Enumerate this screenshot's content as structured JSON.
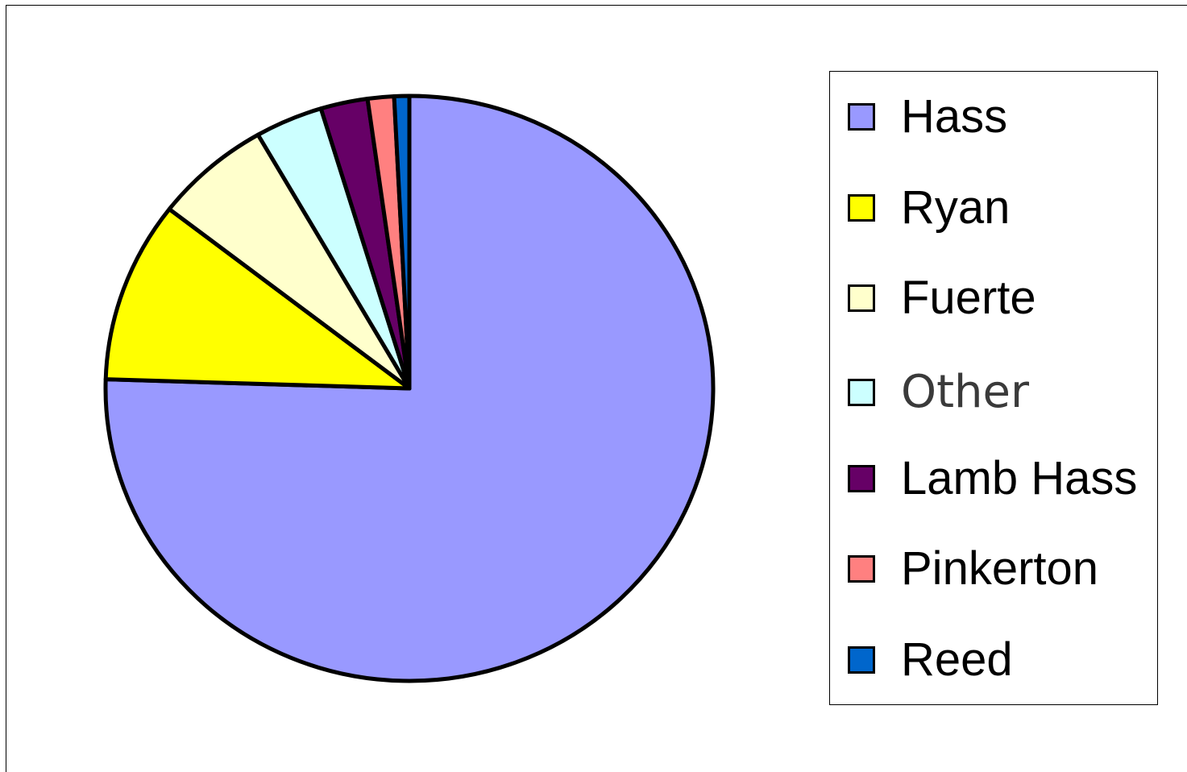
{
  "chart_data": {
    "type": "pie",
    "title": "",
    "legend_position": "right",
    "slices": [
      {
        "label": "Hass",
        "value": 75.5,
        "color": "#9999ff"
      },
      {
        "label": "Ryan",
        "value": 10.0,
        "color": "#ffff00"
      },
      {
        "label": "Fuerte",
        "value": 6.2,
        "color": "#ffffcc"
      },
      {
        "label": "Other",
        "value": 3.6,
        "color": "#ccffff"
      },
      {
        "label": "Lamb Hass",
        "value": 2.5,
        "color": "#660066"
      },
      {
        "label": "Pinkerton",
        "value": 1.4,
        "color": "#ff8080"
      },
      {
        "label": "Reed",
        "value": 0.8,
        "color": "#0066cc"
      }
    ]
  }
}
